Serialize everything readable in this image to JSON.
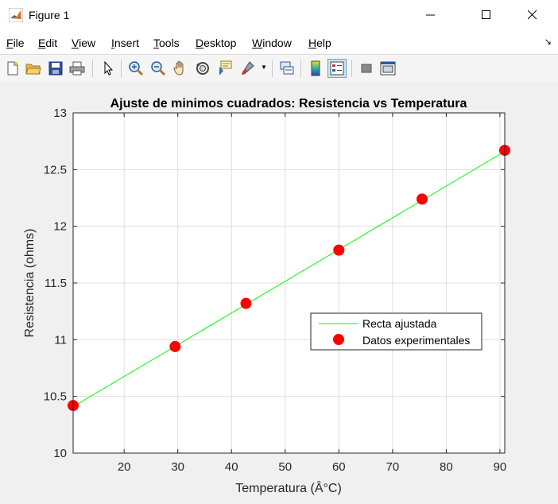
{
  "window": {
    "title": "Figure 1",
    "controls": {
      "minimize": "minimize",
      "maximize": "maximize",
      "close": "close"
    }
  },
  "menu": {
    "items": [
      {
        "label": "File",
        "u": "F",
        "rest": "ile"
      },
      {
        "label": "Edit",
        "u": "E",
        "rest": "dit"
      },
      {
        "label": "View",
        "u": "V",
        "rest": "iew"
      },
      {
        "label": "Insert",
        "u": "I",
        "rest": "nsert"
      },
      {
        "label": "Tools",
        "u": "T",
        "rest": "ools"
      },
      {
        "label": "Desktop",
        "u": "D",
        "rest": "esktop"
      },
      {
        "label": "Window",
        "u": "W",
        "rest": "indow"
      },
      {
        "label": "Help",
        "u": "H",
        "rest": "elp"
      }
    ]
  },
  "toolbar": {
    "buttons": [
      "new-figure-icon",
      "open-file-icon",
      "save-icon",
      "print-icon",
      "edit-plot-arrow-icon",
      "zoom-in-icon",
      "zoom-out-icon",
      "pan-hand-icon",
      "rotate-3d-icon",
      "data-cursor-icon",
      "brush-icon",
      "link-plot-icon",
      "colorbar-icon",
      "legend-icon",
      "hide-plot-tools-icon",
      "show-plot-tools-icon"
    ]
  },
  "chart_data": {
    "type": "line",
    "title": "Ajuste de minimos cuadrados: Resistencia vs Temperatura",
    "xlabel": "Temperatura (Â°C)",
    "ylabel": "Resistencia (ohms)",
    "xlim": [
      10.5,
      90.9
    ],
    "ylim": [
      10,
      13
    ],
    "xticks": [
      20,
      30,
      40,
      50,
      60,
      70,
      80,
      90
    ],
    "yticks": [
      10,
      10.5,
      11,
      11.5,
      12,
      12.5,
      13
    ],
    "ytick_labels": [
      "10",
      "10.5",
      "11",
      "11.5",
      "12",
      "12.5",
      "13"
    ],
    "grid": true,
    "legend_position": "center-right",
    "series": [
      {
        "name": "Recta ajustada",
        "style": "line",
        "color": "#00ff00",
        "x": [
          10.5,
          90.9
        ],
        "y": [
          10.41,
          12.66
        ]
      },
      {
        "name": "Datos experimentales",
        "style": "markers",
        "color": "#ff0000",
        "x": [
          10.5,
          29.5,
          42.7,
          60.0,
          75.5,
          90.9
        ],
        "y": [
          10.42,
          10.94,
          11.32,
          11.79,
          12.24,
          12.67
        ]
      }
    ]
  }
}
